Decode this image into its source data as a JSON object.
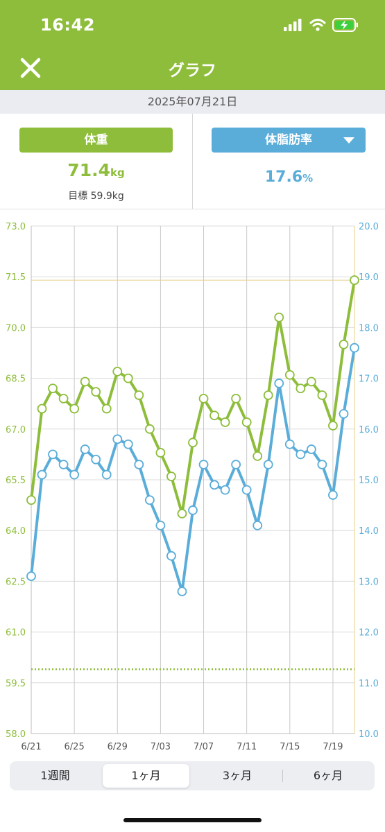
{
  "status_bar": {
    "time": "16:42",
    "icons": [
      "signal-icon",
      "wifi-icon",
      "battery-charging-icon"
    ]
  },
  "header": {
    "title": "グラフ",
    "close_icon": "close-icon",
    "bg_color": "#8dbd3a"
  },
  "date": "2025年07月21日",
  "weight_panel": {
    "label": "体重",
    "value": "71.4",
    "unit": "kg",
    "target": "目標 59.9kg",
    "color": "#8dbd3a"
  },
  "fat_panel": {
    "label": "体脂肪率",
    "value": "17.6",
    "unit": "%",
    "color": "#5aadd9",
    "dropdown_icon": "caret-down-icon"
  },
  "period_tabs": {
    "items": [
      "1週間",
      "1ヶ月",
      "3ヶ月",
      "6ヶ月"
    ],
    "active": "1ヶ月"
  },
  "chart_data": {
    "type": "line",
    "x_labels": [
      "6/21",
      "6/25",
      "6/29",
      "7/03",
      "7/07",
      "7/11",
      "7/15",
      "7/19"
    ],
    "x_label_index": [
      0,
      4,
      8,
      12,
      16,
      20,
      24,
      28
    ],
    "dates": [
      "6/21",
      "6/22",
      "6/23",
      "6/24",
      "6/25",
      "6/26",
      "6/27",
      "6/28",
      "6/29",
      "6/30",
      "7/01",
      "7/02",
      "7/03",
      "7/04",
      "7/05",
      "7/06",
      "7/07",
      "7/08",
      "7/09",
      "7/10",
      "7/11",
      "7/12",
      "7/13",
      "7/14",
      "7/15",
      "7/16",
      "7/17",
      "7/18",
      "7/19",
      "7/20",
      "7/21"
    ],
    "left_axis": {
      "ylim": [
        58.0,
        73.0
      ],
      "ticks": [
        "58.0",
        "59.5",
        "61.0",
        "62.5",
        "64.0",
        "65.5",
        "67.0",
        "68.5",
        "70.0",
        "71.5",
        "73.0"
      ],
      "color": "#8dbd3a"
    },
    "right_axis": {
      "ylim": [
        10.0,
        20.0
      ],
      "ticks": [
        "10.0",
        "11.0",
        "12.0",
        "13.0",
        "14.0",
        "15.0",
        "16.0",
        "17.0",
        "18.0",
        "19.0",
        "20.0"
      ],
      "color": "#5aadd9"
    },
    "series": [
      {
        "axis": "left",
        "color": "#8dbd3a",
        "values": [
          64.9,
          67.6,
          68.2,
          67.9,
          67.6,
          68.4,
          68.1,
          67.6,
          68.7,
          68.5,
          68.0,
          67.0,
          66.3,
          65.6,
          64.5,
          66.6,
          67.9,
          67.4,
          67.2,
          67.9,
          67.2,
          66.2,
          68.0,
          70.3,
          68.6,
          68.2,
          68.4,
          68.0,
          67.1,
          69.5,
          71.4
        ]
      },
      {
        "axis": "right",
        "color": "#5aadd9",
        "values": [
          13.1,
          15.1,
          15.5,
          15.3,
          15.1,
          15.6,
          15.4,
          15.1,
          15.8,
          15.7,
          15.3,
          14.6,
          14.1,
          13.5,
          12.8,
          14.4,
          15.3,
          14.9,
          14.8,
          15.3,
          14.8,
          14.1,
          15.3,
          16.9,
          15.7,
          15.5,
          15.6,
          15.3,
          14.7,
          16.3,
          17.6
        ]
      }
    ],
    "reference_lines": [
      {
        "axis": "left",
        "value": 71.4,
        "style": "solid",
        "color": "#e8cf8a"
      },
      {
        "axis": "left",
        "value": 59.9,
        "style": "dotted",
        "color": "#8dbd3a"
      }
    ],
    "grid": true
  }
}
